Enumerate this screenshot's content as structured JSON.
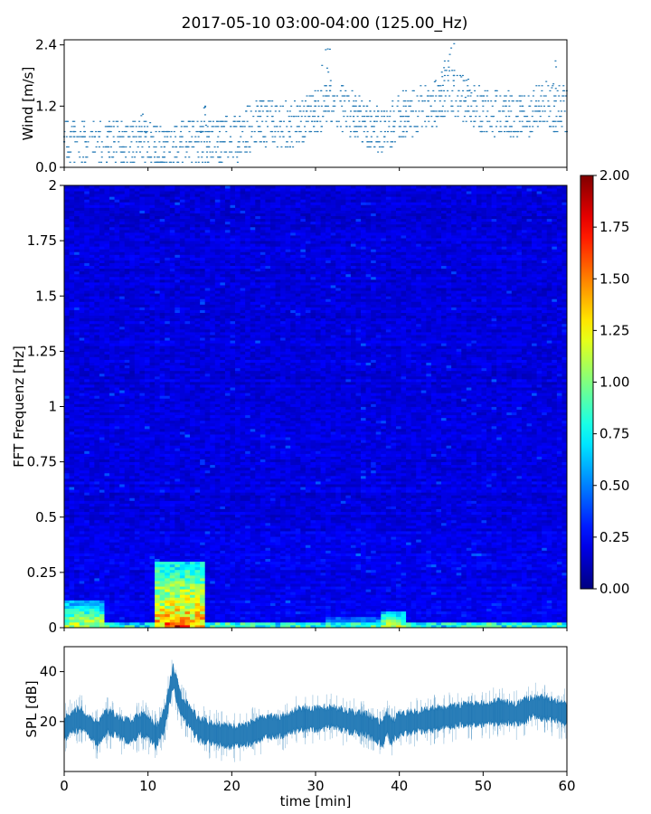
{
  "title": "2017-05-10 03:00-04:00 (125.00_Hz)",
  "chart_data": [
    {
      "type": "scatter",
      "ylabel": "Wind [m/s]",
      "xlim": [
        0,
        60
      ],
      "ylim": [
        0,
        2.5
      ],
      "yticks": [
        {
          "v": 0.0,
          "label": "0.0"
        },
        {
          "v": 1.2,
          "label": "1.2"
        },
        {
          "v": 2.4,
          "label": "2.4"
        }
      ],
      "color": "#1f77b4",
      "trend": [
        [
          0,
          0.5
        ],
        [
          5,
          0.5
        ],
        [
          8,
          0.5
        ],
        [
          10,
          0.5
        ],
        [
          12,
          0.3
        ],
        [
          15,
          0.5
        ],
        [
          18,
          0.5
        ],
        [
          21,
          0.6
        ],
        [
          23,
          0.9
        ],
        [
          27,
          0.8
        ],
        [
          30,
          1.1
        ],
        [
          32,
          1.3
        ],
        [
          35,
          1.0
        ],
        [
          38,
          0.7
        ],
        [
          40,
          1.0
        ],
        [
          44,
          1.2
        ],
        [
          46,
          1.5
        ],
        [
          48,
          1.3
        ],
        [
          50,
          1.1
        ],
        [
          55,
          1.0
        ],
        [
          57,
          1.2
        ],
        [
          60,
          1.1
        ]
      ],
      "peaks": [
        [
          9.8,
          1.1
        ],
        [
          16.5,
          1.2
        ],
        [
          31.2,
          2.35
        ],
        [
          44.8,
          2.1
        ],
        [
          46.0,
          2.45
        ],
        [
          48.0,
          1.85
        ],
        [
          58.2,
          2.1
        ]
      ]
    },
    {
      "type": "heatmap",
      "ylabel": "FFT Frequenz [Hz]",
      "xlim": [
        0,
        60
      ],
      "ylim": [
        0,
        2
      ],
      "yticks": [
        {
          "v": 0,
          "label": "0"
        },
        {
          "v": 0.25,
          "label": "0.25"
        },
        {
          "v": 0.5,
          "label": "0.5"
        },
        {
          "v": 0.75,
          "label": "0.75"
        },
        {
          "v": 1,
          "label": "1"
        },
        {
          "v": 1.25,
          "label": "1.25"
        },
        {
          "v": 1.5,
          "label": "1.5"
        },
        {
          "v": 1.75,
          "label": "1.75"
        },
        {
          "v": 2,
          "label": "2"
        }
      ],
      "colorbar": {
        "range": [
          0,
          2
        ],
        "colormap": "jet",
        "ticks": [
          {
            "v": 0,
            "label": "0.00"
          },
          {
            "v": 0.25,
            "label": "0.25"
          },
          {
            "v": 0.5,
            "label": "0.50"
          },
          {
            "v": 0.75,
            "label": "0.75"
          },
          {
            "v": 1,
            "label": "1.00"
          },
          {
            "v": 1.25,
            "label": "1.25"
          },
          {
            "v": 1.5,
            "label": "1.50"
          },
          {
            "v": 1.75,
            "label": "1.75"
          },
          {
            "v": 2,
            "label": "2.00"
          }
        ]
      },
      "hot_spots": [
        {
          "x": [
            0,
            5
          ],
          "f": [
            0,
            0.12
          ],
          "value": 1.2
        },
        {
          "x": [
            11,
            16.5
          ],
          "f": [
            0,
            0.3
          ],
          "value": 1.5
        },
        {
          "x": [
            12,
            15
          ],
          "f": [
            0,
            0.05
          ],
          "value": 1.9
        },
        {
          "x": [
            38,
            41
          ],
          "f": [
            0,
            0.08
          ],
          "value": 1.2
        },
        {
          "x": [
            31,
            39
          ],
          "f": [
            0,
            0.05
          ],
          "value": 0.8
        }
      ]
    },
    {
      "type": "area",
      "ylabel": "SPL [dB]",
      "xlabel": "time [min]",
      "xlim": [
        0,
        60
      ],
      "ylim": [
        0,
        50
      ],
      "yticks": [
        {
          "v": 20,
          "label": "20"
        },
        {
          "v": 40,
          "label": "40"
        }
      ],
      "xticks": [
        {
          "v": 0,
          "label": "0"
        },
        {
          "v": 10,
          "label": "10"
        },
        {
          "v": 20,
          "label": "20"
        },
        {
          "v": 30,
          "label": "30"
        },
        {
          "v": 40,
          "label": "40"
        },
        {
          "v": 50,
          "label": "50"
        },
        {
          "v": 60,
          "label": "60"
        }
      ],
      "color": "#1f77b4",
      "x": [
        0,
        1,
        2,
        3,
        4,
        5,
        6,
        7,
        8,
        9,
        10,
        11,
        12,
        12.5,
        13,
        14,
        15,
        16,
        18,
        20,
        22,
        24,
        26,
        28,
        30,
        32,
        34,
        36,
        37,
        38,
        38.5,
        39,
        40,
        42,
        44,
        46,
        48,
        50,
        52,
        54,
        56,
        58,
        60
      ],
      "y": [
        17,
        20,
        21,
        18,
        15,
        20,
        19,
        17,
        16,
        19,
        18,
        14,
        21,
        30,
        38,
        26,
        22,
        17,
        15,
        14,
        15,
        18,
        18,
        21,
        21,
        22,
        20,
        19,
        17,
        15,
        20,
        16,
        19,
        20,
        21,
        22,
        23,
        23,
        24,
        23,
        26,
        25,
        23
      ],
      "spread": 4
    }
  ]
}
